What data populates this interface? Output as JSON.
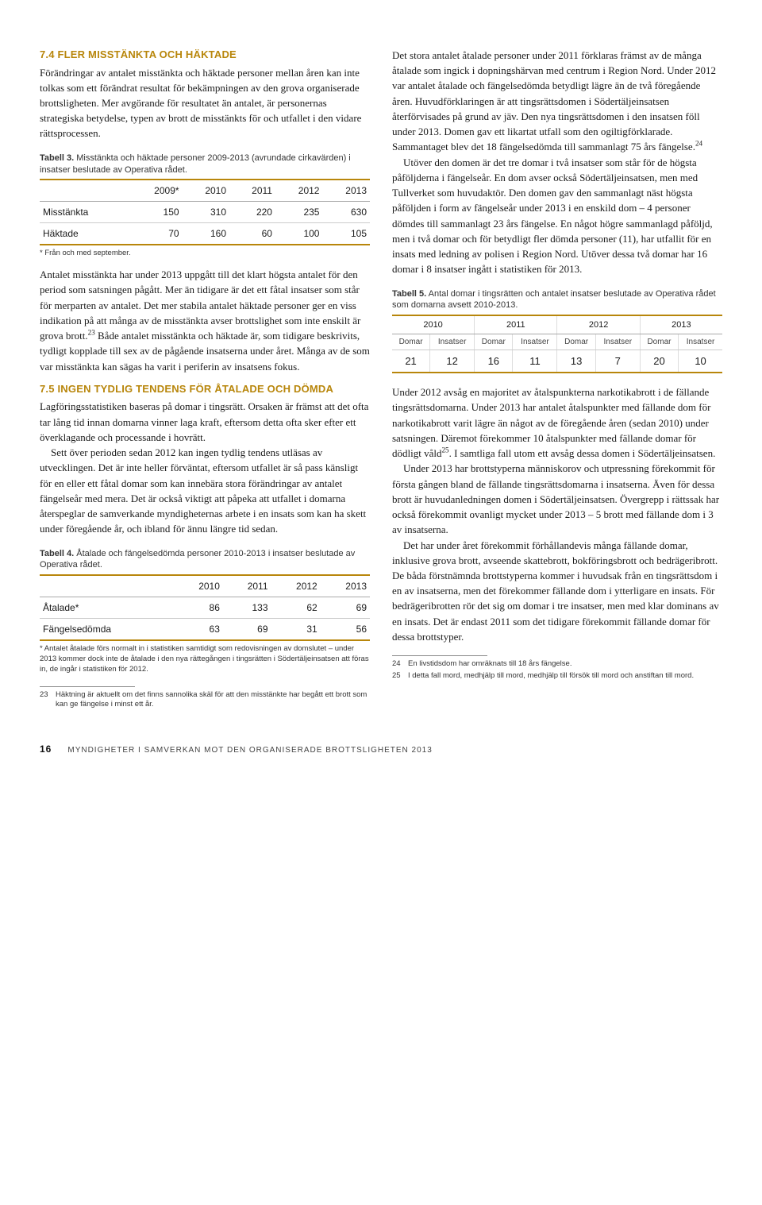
{
  "accent_color": "#b8860b",
  "section74": {
    "heading": "7.4 FLER MISSTÄNKTA OCH HÄKTADE",
    "p1": "Förändringar av antalet misstänkta och häktade personer mellan åren kan inte tolkas som ett förändrat resultat för bekämpningen av den grova organiserade brottsligheten. Mer avgörande för resultatet än antalet, är personernas strategiska betydelse, typen av brott de misstänkts för och utfallet i den vidare rättsprocessen."
  },
  "table3": {
    "label": "Tabell 3.",
    "caption": "Misstänkta och häktade personer 2009-2013 (avrundade cirkavärden) i insatser beslutade av Operativa rådet.",
    "headers": [
      "",
      "2009*",
      "2010",
      "2011",
      "2012",
      "2013"
    ],
    "rows": [
      [
        "Misstänkta",
        "150",
        "310",
        "220",
        "235",
        "630"
      ],
      [
        "Häktade",
        "70",
        "160",
        "60",
        "100",
        "105"
      ]
    ],
    "note": "* Från och med september."
  },
  "section74b": {
    "p1": "Antalet misstänkta har under 2013 uppgått till det klart högsta antalet för den period som satsningen pågått. Mer än tidigare är det ett fåtal insatser som står för merparten av antalet. Det mer stabila antalet häktade personer ger en viss indikation på att många av de misstänkta avser brottslighet som inte enskilt är grova brott.",
    "p1_sup": "23",
    "p1_tail": " Både antalet misstänkta och häktade är, som tidigare beskrivits, tydligt kopplade till sex av de pågående insatserna under året. Många av de som var misstänkta kan sägas ha varit i periferin av insatsens fokus."
  },
  "section75": {
    "heading": "7.5 INGEN TYDLIG TENDENS FÖR ÅTALADE OCH DÖMDA",
    "p1": "Lagföringsstatistiken baseras på domar i tingsrätt. Orsaken är främst att det ofta tar lång tid innan domarna vinner laga kraft, eftersom detta ofta sker efter ett överklagande och processande i hovrätt.",
    "p2": "Sett över perioden sedan 2012 kan ingen tydlig tendens utläsas av utvecklingen. Det är inte heller förväntat, eftersom utfallet är så pass känsligt för en eller ett fåtal domar som kan innebära stora förändringar av antalet fängelseår med mera. Det är också viktigt att påpeka att utfallet i domarna återspeglar de samverkande myndigheternas arbete i en insats som kan ha skett under föregående år, och ibland för ännu längre tid sedan."
  },
  "table4": {
    "label": "Tabell 4.",
    "caption": "Åtalade och fängelsedömda personer 2010-2013 i insatser beslutade av Operativa rådet.",
    "headers": [
      "",
      "2010",
      "2011",
      "2012",
      "2013"
    ],
    "rows": [
      [
        "Åtalade*",
        "86",
        "133",
        "62",
        "69"
      ],
      [
        "Fängelsedömda",
        "63",
        "69",
        "31",
        "56"
      ]
    ],
    "note": "* Antalet åtalade förs normalt in i statistiken samtidigt som redovisningen av domslutet – under 2013 kommer dock inte de åtalade i den nya rättegången i tingsrätten i Södertäljeinsatsen att föras in, de ingår i statistiken för 2012."
  },
  "footnotes_left": [
    {
      "num": "23",
      "text": "Häktning är aktuellt om det finns sannolika skäl för att den misstänkte har begått ett brott som kan ge fängelse i minst ett år."
    }
  ],
  "right_col": {
    "p1": "Det stora antalet åtalade personer under 2011 förklaras främst av de många åtalade som ingick i dopningshärvan med centrum i Region Nord. Under 2012 var antalet åtalade och fängelsedömda betydligt lägre än de två föregående åren. Huvudförklaringen är att tingsrättsdomen i Södertäljeinsatsen återförvisades på grund av jäv. Den nya tingsrättsdomen i den insatsen föll under 2013. Domen gav ett likartat utfall som den ogiltigförklarade. Sammantaget blev det 18 fängelsedömda till sammanlagt 75 års fängelse.",
    "p1_sup": "24",
    "p2": "Utöver den domen är det tre domar i två insatser som står för de högsta påföljderna i fängelseår. En dom avser också Södertäljeinsatsen, men med Tullverket som huvudaktör. Den domen gav den sammanlagt näst högsta påföljden i form av fängelseår under 2013 i en enskild dom – 4 personer dömdes till sammanlagt 23 års fängelse. En något högre sammanlagd påföljd, men i två domar och för betydligt fler dömda personer (11), har utfallit för en insats med ledning av polisen i Region Nord. Utöver dessa två domar har 16 domar i 8 insatser ingått i statistiken för 2013."
  },
  "table5": {
    "label": "Tabell 5.",
    "caption": "Antal domar i tingsrätten och antalet insatser beslutade av Operativa rådet som domarna avsett 2010-2013.",
    "years": [
      "2010",
      "2011",
      "2012",
      "2013"
    ],
    "subheaders": [
      "Domar",
      "Insatser",
      "Domar",
      "Insatser",
      "Domar",
      "Insatser",
      "Domar",
      "Insatser"
    ],
    "row": [
      "21",
      "12",
      "16",
      "11",
      "13",
      "7",
      "20",
      "10"
    ]
  },
  "right_col2": {
    "p1": "Under 2012 avsåg en majoritet av åtalspunkterna narkotikabrott i de fällande tingsrättsdomarna. Under 2013 har antalet åtalspunkter med fällande dom för narkotikabrott varit lägre än något av de föregående åren (sedan 2010) under satsningen. Däremot förekommer 10 åtalspunkter med fällande domar för dödligt våld",
    "p1_sup": "25",
    "p1_tail": ". I samtliga fall utom ett avsåg dessa domen i Södertäljeinsatsen.",
    "p2": "Under 2013 har brottstyperna människorov och utpressning förekommit för första gången bland de fällande tingsrättsdomarna i insatserna. Även för dessa brott är huvudanledningen domen i Södertäljeinsatsen. Övergrepp i rättssak har också förekommit ovanligt mycket under 2013 – 5 brott med fällande dom i 3 av insatserna.",
    "p3": "Det har under året förekommit förhållandevis många fällande domar, inklusive grova brott, avseende skattebrott, bokföringsbrott och bedrägeribrott. De båda förstnämnda brottstyperna kommer i huvudsak från en tingsrättsdom i en av insatserna, men det förekommer fällande dom i ytterligare en insats. För bedrägeribrotten rör det sig om domar i tre insatser, men med klar dominans av en insats. Det är endast 2011 som det tidigare förekommit fällande domar för dessa brottstyper."
  },
  "footnotes_right": [
    {
      "num": "24",
      "text": "En livstidsdom har omräknats till 18 års fängelse."
    },
    {
      "num": "25",
      "text": "I detta fall mord, medhjälp till mord, medhjälp till försök till mord och anstiftan till mord."
    }
  ],
  "footer": {
    "page_number": "16",
    "running_title": "MYNDIGHETER I SAMVERKAN MOT DEN ORGANISERADE BROTTSLIGHETEN 2013"
  }
}
